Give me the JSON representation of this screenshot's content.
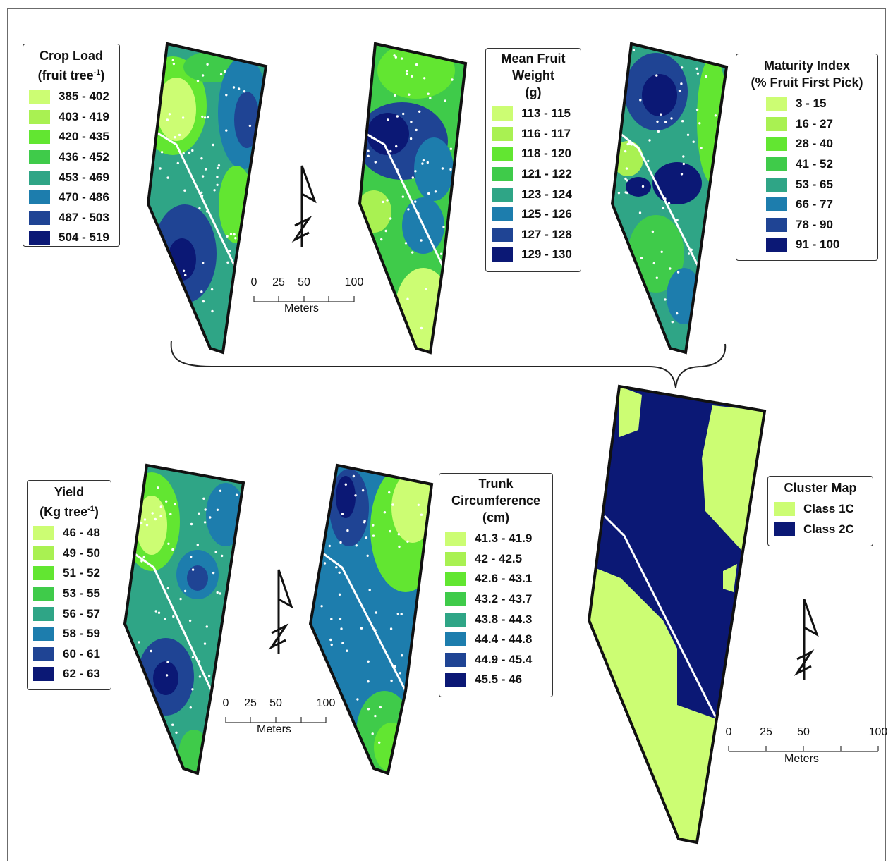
{
  "colors": {
    "c1": "#ccfd73",
    "c2": "#a9f152",
    "c3": "#62e631",
    "c4": "#3fcb4a",
    "c5": "#2fa586",
    "c6": "#1d7dad",
    "c7": "#1f4494",
    "c8": "#0b1875",
    "class1c": "#ccfd73",
    "class2c": "#0b1875"
  },
  "legends": {
    "crop_load": {
      "title_main": "Crop Load",
      "title_sub": "(fruit tree",
      "title_sup": "-1",
      "title_close": ")",
      "items": [
        "385 - 402",
        "403 - 419",
        "420 - 435",
        "436 - 452",
        "453 - 469",
        "470 - 486",
        "487 - 503",
        "504 - 519"
      ]
    },
    "fruit_weight": {
      "title_line1": "Mean Fruit",
      "title_line2": "Weight",
      "title_line3": "(g)",
      "items": [
        "113 - 115",
        "116 - 117",
        "118 - 120",
        "121 - 122",
        "123 - 124",
        "125 - 126",
        "127 - 128",
        "129 - 130"
      ]
    },
    "maturity": {
      "title_line1": "Maturity Index",
      "title_line2": "(% Fruit First Pick)",
      "items": [
        "3 - 15",
        "16 - 27",
        "28 - 40",
        "41 - 52",
        "53 - 65",
        "66 - 77",
        "78 - 90",
        "91 - 100"
      ]
    },
    "yield": {
      "title_main": "Yield",
      "title_sub": "(Kg tree",
      "title_sup": "-1",
      "title_close": ")",
      "items": [
        "46 - 48",
        "49 - 50",
        "51 - 52",
        "53 - 55",
        "56 - 57",
        "58 - 59",
        "60 - 61",
        "62 - 63"
      ]
    },
    "trunk": {
      "title_line1": "Trunk",
      "title_line2": "Circumference",
      "title_line3": "(cm)",
      "items": [
        "41.3 - 41.9",
        "42 - 42.5",
        "42.6 - 43.1",
        "43.2 - 43.7",
        "43.8 - 44.3",
        "44.4 - 44.8",
        "44.9 - 45.4",
        "45.5 - 46"
      ]
    },
    "cluster": {
      "title": "Cluster Map",
      "items": [
        "Class 1C",
        "Class 2C"
      ]
    }
  },
  "scale": {
    "ticks": [
      "0",
      "25",
      "50",
      "100"
    ],
    "unit": "Meters"
  }
}
